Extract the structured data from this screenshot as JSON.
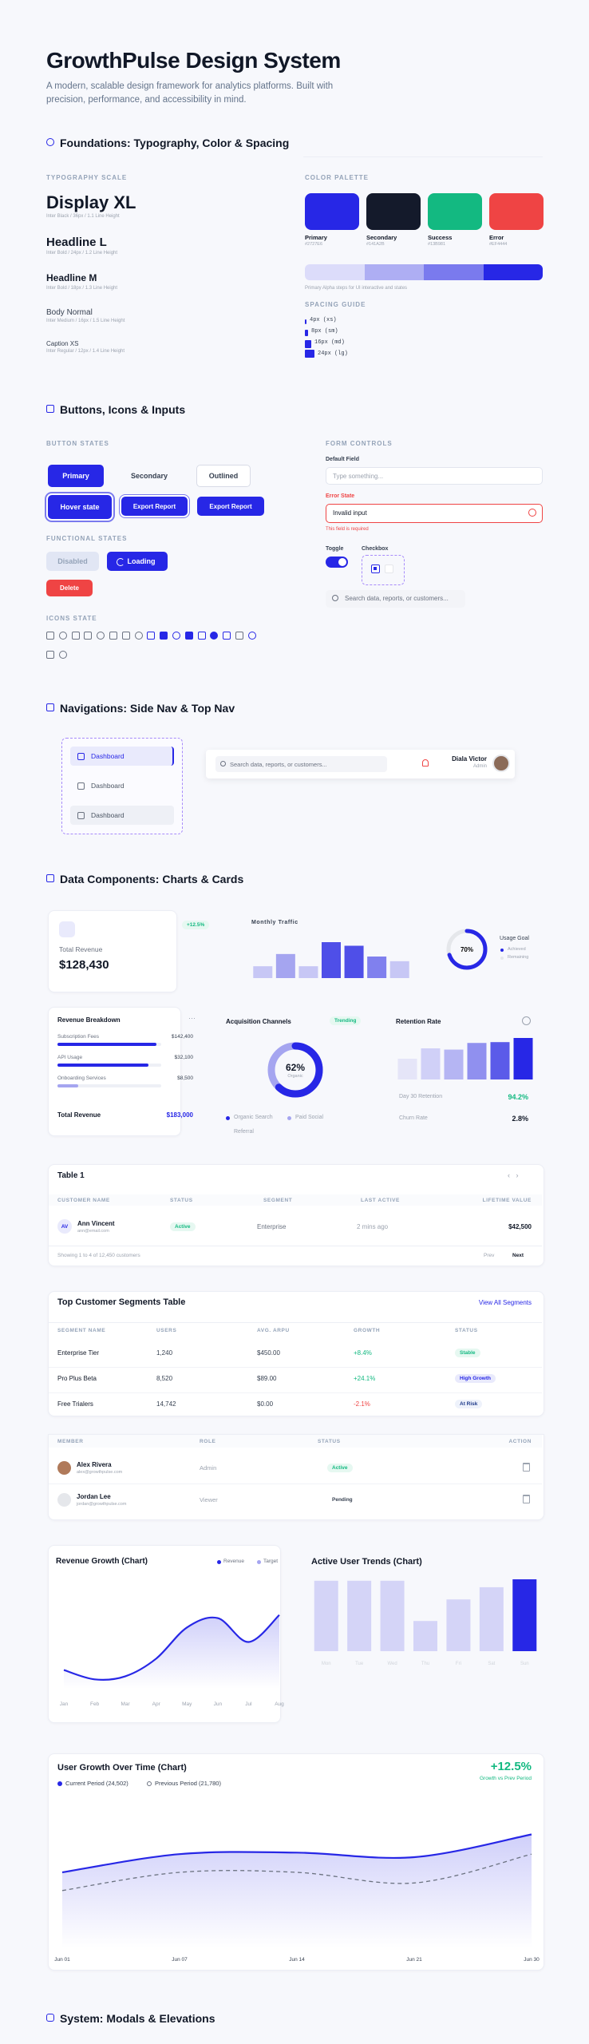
{
  "header": {
    "title": "GrowthPulse Design System",
    "subtitle": "A modern, scalable design framework for analytics platforms. Built with precision, performance, and accessibility in mind."
  },
  "foundations": {
    "heading": "Foundations: Typography, Color & Spacing",
    "typography": {
      "label": "TYPOGRAPHY SCALE",
      "items": [
        {
          "name": "Display XL",
          "spec": "Inter Black / 36px / 1.1 Line Height"
        },
        {
          "name": "Headline L",
          "spec": "Inter Bold / 24px / 1.2 Line Height"
        },
        {
          "name": "Headline M",
          "spec": "Inter Bold / 18px / 1.3 Line Height"
        },
        {
          "name": "Body Normal",
          "spec": "Inter Medium / 16px / 1.5 Line Height"
        },
        {
          "name": "Caption XS",
          "spec": "Inter Regular / 12px / 1.4 Line Height"
        }
      ]
    },
    "palette": {
      "label": "COLOR PALETTE",
      "colors": [
        {
          "name": "Primary",
          "hex": "#2727E6",
          "color": "#2727e6"
        },
        {
          "name": "Secondary",
          "hex": "#141A2B",
          "color": "#141a2b"
        },
        {
          "name": "Success",
          "hex": "#13B981",
          "color": "#13b981"
        },
        {
          "name": "Error",
          "hex": "#EF4444",
          "color": "#ef4444"
        }
      ],
      "alpha_colors": [
        "#dcdcfa",
        "#aeaef3",
        "#7a7aee",
        "#2727e6"
      ],
      "alpha_note": "Primary Alpha steps for UI interactive and states"
    },
    "spacing": {
      "label": "SPACING GUIDE",
      "items": [
        {
          "label": "4px (xs)",
          "size": 4
        },
        {
          "label": "8px (sm)",
          "size": 8
        },
        {
          "label": "16px (md)",
          "size": 16
        },
        {
          "label": "24px (lg)",
          "size": 24
        }
      ]
    }
  },
  "controls": {
    "heading": "Buttons, Icons & Inputs",
    "button_states_label": "BUTTON STATES",
    "buttons": [
      "Primary",
      "Secondary",
      "Outlined",
      "Hover state",
      "Export Report",
      "Export Report"
    ],
    "functional_label": "FUNCTIONAL STATES",
    "functional": [
      "Disabled",
      "Loading",
      "Delete"
    ],
    "icons_label": "ICONS STATE",
    "form_label": "FORM CONTROLS",
    "default_label": "Default Field",
    "default_placeholder": "Type something...",
    "error_label": "Error State",
    "error_value": "Invalid input",
    "error_message": "This field is required",
    "toggle_label": "Toggle",
    "checkbox_label": "Checkbox",
    "search_placeholder": "Search data, reports, or customers..."
  },
  "navigation": {
    "heading": "Navigations: Side Nav & Top Nav",
    "side_items": [
      "Dashboard",
      "Dashboard",
      "Dashboard"
    ],
    "search_placeholder": "Search data, reports, or customers...",
    "user_name": "Diala Victor",
    "user_role": "Admin"
  },
  "data_components": {
    "heading": "Data Components: Charts & Cards",
    "revenue_card": {
      "label": "Total Revenue",
      "value": "$128,430",
      "change": "+12.5%"
    },
    "monthly_traffic": {
      "type": "bar",
      "title": "Monthly Traffic",
      "values": [
        33,
        67,
        33,
        100,
        90,
        60,
        47
      ],
      "ylim": [
        0,
        100
      ],
      "colors": [
        "#c7c7f5",
        "#a5a5f0",
        "#c7c7f5",
        "#4f4fe8",
        "#4f4fe8",
        "#8080ee",
        "#c7c7f5"
      ]
    },
    "usage_goal": {
      "type": "donut",
      "title": "Usage Goal",
      "value": 70,
      "value_label": "70%",
      "color": "#2727e6",
      "legend": [
        "Achieved",
        "Remaining"
      ]
    },
    "revenue_breakdown": {
      "title": "Revenue Breakdown",
      "items": [
        {
          "name": "Subscription Fees",
          "amount": "$142,400",
          "progress": 95
        },
        {
          "name": "API Usage",
          "amount": "$32,100",
          "progress": 88
        },
        {
          "name": "Onboarding Services",
          "amount": "$8,500",
          "progress": 20
        }
      ],
      "total_label": "Total Revenue",
      "total": "$183,000"
    },
    "acquisition": {
      "type": "donut",
      "title": "Acquisition Channels",
      "badge": "Trending",
      "value": 62,
      "value_label": "62%",
      "center_sub": "Organic",
      "color": "#2727e6",
      "legend": [
        "Organic Search",
        "Paid Social",
        "Referral"
      ]
    },
    "retention": {
      "type": "bar",
      "title": "Retention Rate",
      "values": [
        50,
        75,
        72,
        88,
        90,
        100
      ],
      "ylim": [
        0,
        100
      ],
      "colors": [
        "#e5e5f8",
        "#d0d0f7",
        "#b5b5f3",
        "#9090ef",
        "#5b5be9",
        "#2727e6"
      ],
      "stats": [
        {
          "label": "Day 30 Retention",
          "value": "94.2%"
        },
        {
          "label": "Churn Rate",
          "value": "2.8%"
        }
      ]
    },
    "table1": {
      "title": "Table 1",
      "columns": [
        "CUSTOMER NAME",
        "STATUS",
        "SEGMENT",
        "LAST ACTIVE",
        "LIFETIME VALUE"
      ],
      "row": {
        "initials": "AV",
        "name": "Ann Vincent",
        "email": "ann@email.com",
        "status": "Active",
        "segment": "Enterprise",
        "last_active": "2 mins ago",
        "value": "$42,500"
      },
      "footer": "Showing 1 to 4 of 12,450 customers",
      "prev": "Prev",
      "next": "Next"
    },
    "segments": {
      "title": "Top Customer Segments Table",
      "link": "View All Segments",
      "columns": [
        "SEGMENT NAME",
        "USERS",
        "AVG. ARPU",
        "GROWTH",
        "STATUS"
      ],
      "rows": [
        [
          "Enterprise Tier",
          "1,240",
          "$450.00",
          "+8.4%",
          "Stable"
        ],
        [
          "Pro Plus Beta",
          "8,520",
          "$89.00",
          "+24.1%",
          "High Growth"
        ],
        [
          "Free Trialers",
          "14,742",
          "$0.00",
          "-2.1%",
          "At Risk"
        ]
      ]
    },
    "members": {
      "columns": [
        "MEMBER",
        "ROLE",
        "STATUS",
        "ACTION"
      ],
      "rows": [
        {
          "name": "Alex Rivera",
          "email": "alex@growthpulse.com",
          "role": "Admin",
          "status": "Active"
        },
        {
          "name": "Jordan Lee",
          "email": "jordan@growthpulse.com",
          "role": "Viewer",
          "status": "Pending"
        }
      ]
    },
    "revenue_growth": {
      "type": "line",
      "title": "Revenue Growth (Chart)",
      "legend": [
        "Revenue",
        "Target"
      ],
      "legend_colors": [
        "#2727e6",
        "#a5a5f0"
      ],
      "categories": [
        "Jan",
        "Feb",
        "Mar",
        "Apr",
        "May",
        "Jun",
        "Jul",
        "Aug"
      ],
      "series": [
        {
          "name": "Revenue",
          "color": "#2727e6",
          "values": [
            18,
            9,
            12,
            29,
            59,
            68,
            45,
            71
          ]
        }
      ],
      "ylim": [
        0,
        100
      ]
    },
    "active_users": {
      "type": "bar",
      "title": "Active User Trends (Chart)",
      "categories": [
        "Mon",
        "Tue",
        "Wed",
        "Thu",
        "Fri",
        "Sat",
        "Sun"
      ],
      "values": [
        98,
        98,
        98,
        42,
        72,
        89,
        100
      ],
      "ylim": [
        0,
        100
      ],
      "colors": [
        "#d4d4f7",
        "#d4d4f7",
        "#d4d4f7",
        "#d4d4f7",
        "#d4d4f7",
        "#d4d4f7",
        "#2727e6"
      ]
    },
    "user_growth": {
      "type": "line",
      "title": "User Growth Over Time (Chart)",
      "change": "+12.5%",
      "change_label": "Growth vs Prev Period",
      "categories": [
        "Jun 01",
        "Jun 07",
        "Jun 14",
        "Jun 21",
        "Jun 30"
      ],
      "series": [
        {
          "name": "Current Period (24,502)",
          "color": "#2727e6",
          "values": [
            50,
            62,
            63,
            60,
            75
          ]
        },
        {
          "name": "Previous Period (21,780)",
          "color": "#6b7280",
          "values": [
            38,
            50,
            50,
            43,
            62
          ]
        }
      ],
      "ylim": [
        0,
        100
      ]
    }
  },
  "system": {
    "heading": "System:  Modals & Elevations"
  }
}
